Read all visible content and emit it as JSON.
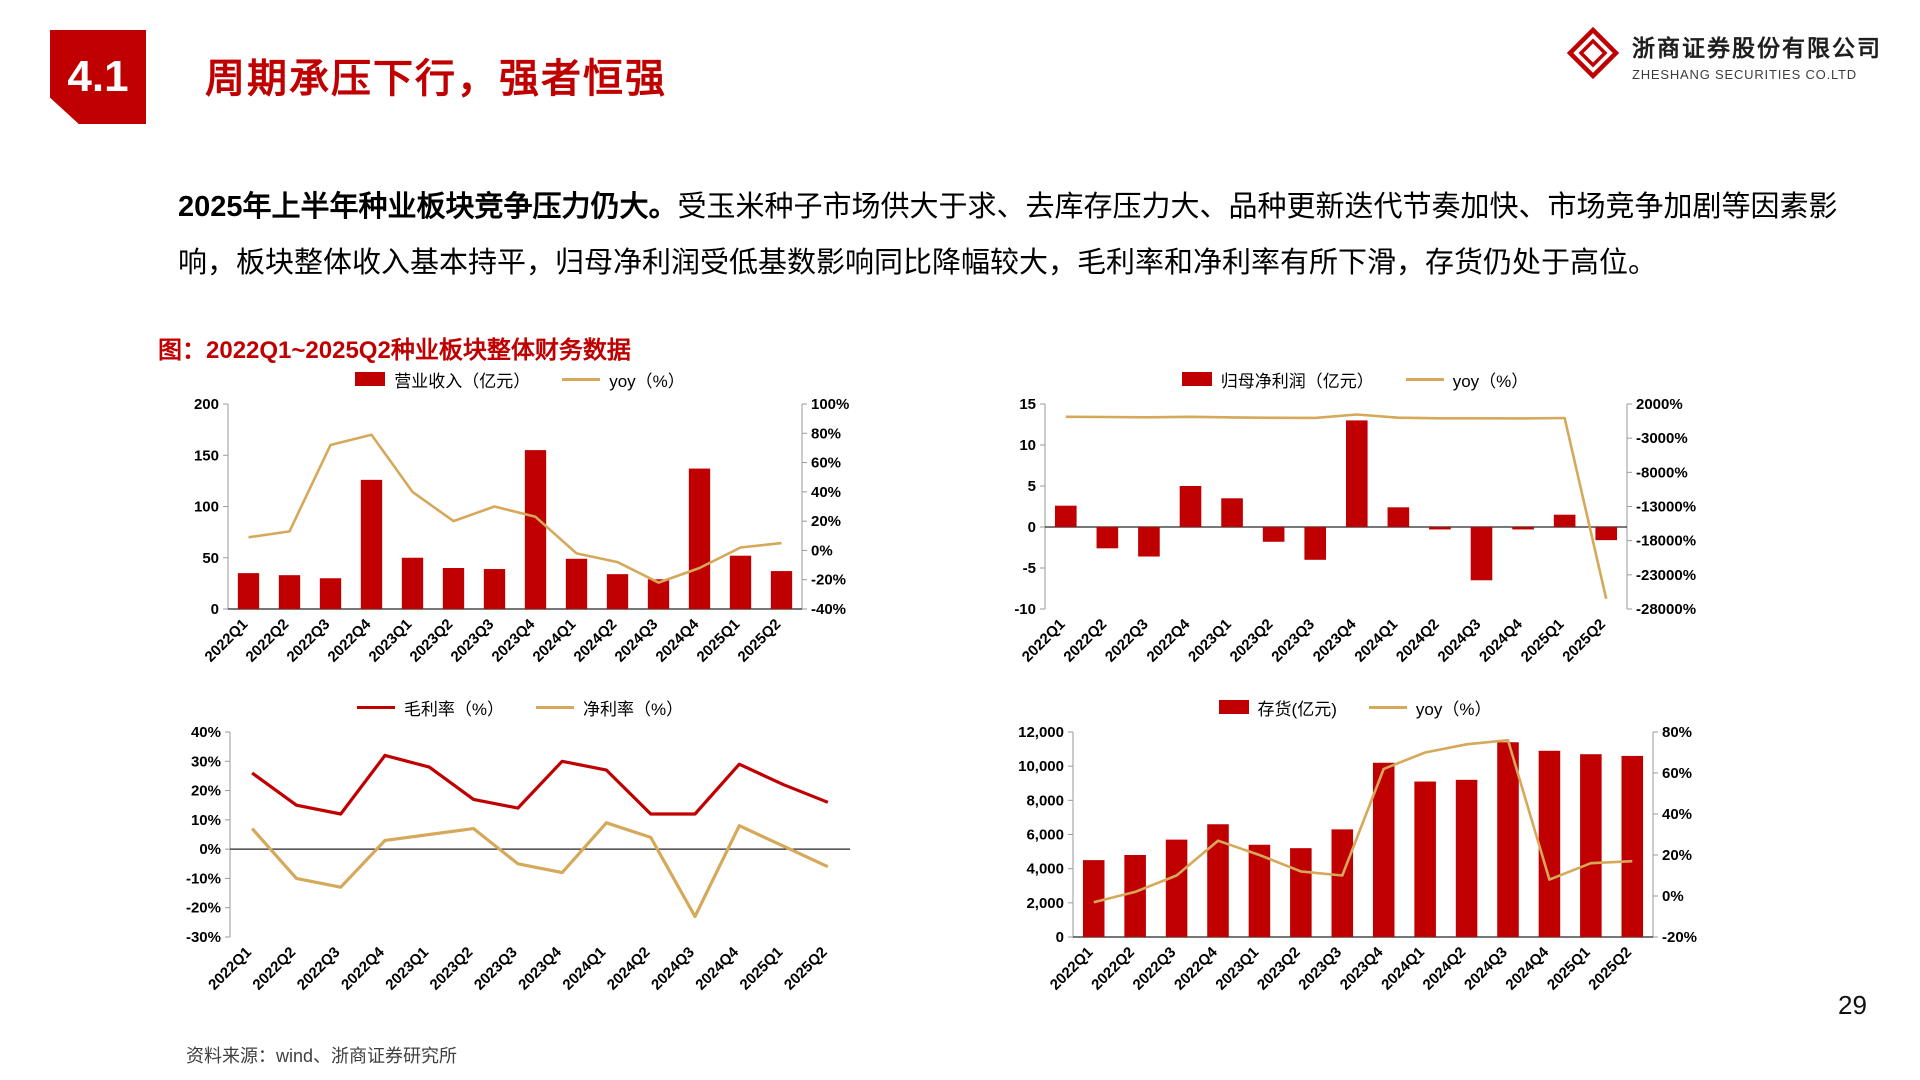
{
  "slide": {
    "section_number": "4.1",
    "title": "周期承压下行，强者恒强",
    "logo": {
      "company_cn": "浙商证券股份有限公司",
      "company_en": "ZHESHANG SECURITIES CO.LTD"
    },
    "body_lead": "2025年上半年种业板块竞争压力仍大。",
    "body_rest": "受玉米种子市场供大于求、去库存压力大、品种更新迭代节奏加快、市场竞争加剧等因素影响，板块整体收入基本持平，归母净利润受低基数影响同比降幅较大，毛利率和净利率有所下滑，存货仍处于高位。",
    "figure_caption": "图：2022Q1~2025Q2种业板块整体财务数据",
    "source": "资料来源：wind、浙商证券研究所",
    "page_number": "29"
  },
  "colors": {
    "brand_red": "#C00000",
    "line_gold": "#D5A85A",
    "axis_grey": "#9a9a9a",
    "zero_line": "#262626"
  },
  "chart_data": [
    {
      "id": "revenue",
      "type": "bar+line",
      "categories": [
        "2022Q1",
        "2022Q2",
        "2022Q3",
        "2022Q4",
        "2023Q1",
        "2023Q2",
        "2023Q3",
        "2023Q4",
        "2024Q1",
        "2024Q2",
        "2024Q3",
        "2024Q4",
        "2025Q1",
        "2025Q2"
      ],
      "bar_series": {
        "name": "营业收入（亿元）",
        "axis": "left",
        "values": [
          35,
          33,
          30,
          126,
          50,
          40,
          39,
          155,
          49,
          34,
          29,
          137,
          52,
          37
        ]
      },
      "line_series": {
        "name": "yoy（%）",
        "axis": "right",
        "values": [
          9,
          13,
          72,
          79,
          40,
          20,
          30,
          23,
          -2,
          -8,
          -22,
          -12,
          2,
          5
        ]
      },
      "left_axis": {
        "min": 0,
        "max": 200,
        "tick_labels": [
          "200",
          "150",
          "100",
          "50",
          "0"
        ]
      },
      "right_axis": {
        "min": -40,
        "max": 100,
        "tick_labels": [
          "100%",
          "80%",
          "60%",
          "40%",
          "20%",
          "0%",
          "-20%",
          "-40%"
        ]
      }
    },
    {
      "id": "net-profit",
      "type": "bar+line",
      "categories": [
        "2022Q1",
        "2022Q2",
        "2022Q3",
        "2022Q4",
        "2023Q1",
        "2023Q2",
        "2023Q3",
        "2023Q4",
        "2024Q1",
        "2024Q2",
        "2024Q3",
        "2024Q4",
        "2025Q1",
        "2025Q2"
      ],
      "bar_series": {
        "name": "归母净利润（亿元）",
        "axis": "left",
        "values": [
          2.6,
          -2.6,
          -3.6,
          5,
          3.5,
          -1.8,
          -4,
          13,
          2.4,
          -0.3,
          -6.5,
          -0.3,
          1.5,
          -1.6
        ]
      },
      "line_series": {
        "name": "yoy（%）",
        "axis": "right",
        "values": [
          130,
          100,
          60,
          120,
          40,
          -20,
          -30,
          460,
          -10,
          -100,
          -90,
          -110,
          -50,
          -26500
        ]
      },
      "left_axis": {
        "min": -10,
        "max": 15,
        "tick_labels": [
          "15",
          "10",
          "5",
          "0",
          "-5",
          "-10"
        ]
      },
      "right_axis": {
        "min": -28000,
        "max": 2000,
        "tick_labels": [
          "2000%",
          "-3000%",
          "-8000%",
          "-13000%",
          "-18000%",
          "-23000%",
          "-28000%"
        ]
      }
    },
    {
      "id": "margins",
      "type": "line",
      "categories": [
        "2022Q1",
        "2022Q2",
        "2022Q3",
        "2022Q4",
        "2023Q1",
        "2023Q2",
        "2023Q3",
        "2023Q4",
        "2024Q1",
        "2024Q2",
        "2024Q3",
        "2024Q4",
        "2025Q1",
        "2025Q2"
      ],
      "series": [
        {
          "name": "毛利率（%）",
          "color": "red",
          "values": [
            26,
            15,
            12,
            32,
            28,
            17,
            14,
            30,
            27,
            12,
            12,
            29,
            22,
            16
          ]
        },
        {
          "name": "净利率（%）",
          "color": "gold",
          "values": [
            7,
            -10,
            -13,
            3,
            5,
            7,
            -5,
            -8,
            9,
            4,
            -23,
            8,
            1,
            -6
          ]
        }
      ],
      "left_axis": {
        "min": -30,
        "max": 40,
        "tick_labels": [
          "40%",
          "30%",
          "20%",
          "10%",
          "0%",
          "-10%",
          "-20%",
          "-30%"
        ]
      }
    },
    {
      "id": "inventory",
      "type": "bar+line",
      "categories": [
        "2022Q1",
        "2022Q2",
        "2022Q3",
        "2022Q4",
        "2023Q1",
        "2023Q2",
        "2023Q3",
        "2023Q4",
        "2024Q1",
        "2024Q2",
        "2024Q3",
        "2024Q4",
        "2025Q1",
        "2025Q2"
      ],
      "bar_series": {
        "name": "存货(亿元)",
        "axis": "left",
        "values": [
          4500,
          4800,
          5700,
          6600,
          5400,
          5200,
          6300,
          10200,
          9100,
          9200,
          11400,
          10900,
          10700,
          10600
        ]
      },
      "line_series": {
        "name": "yoy（%）",
        "axis": "right",
        "values": [
          -3,
          2,
          10,
          27,
          20,
          12,
          10,
          62,
          70,
          74,
          76,
          8,
          16,
          17
        ]
      },
      "left_axis": {
        "min": 0,
        "max": 12000,
        "tick_labels": [
          "12,000",
          "10,000",
          "8,000",
          "6,000",
          "4,000",
          "2,000",
          "0"
        ]
      },
      "right_axis": {
        "min": -20,
        "max": 80,
        "tick_labels": [
          "80%",
          "60%",
          "40%",
          "20%",
          "0%",
          "-20%"
        ]
      }
    }
  ]
}
